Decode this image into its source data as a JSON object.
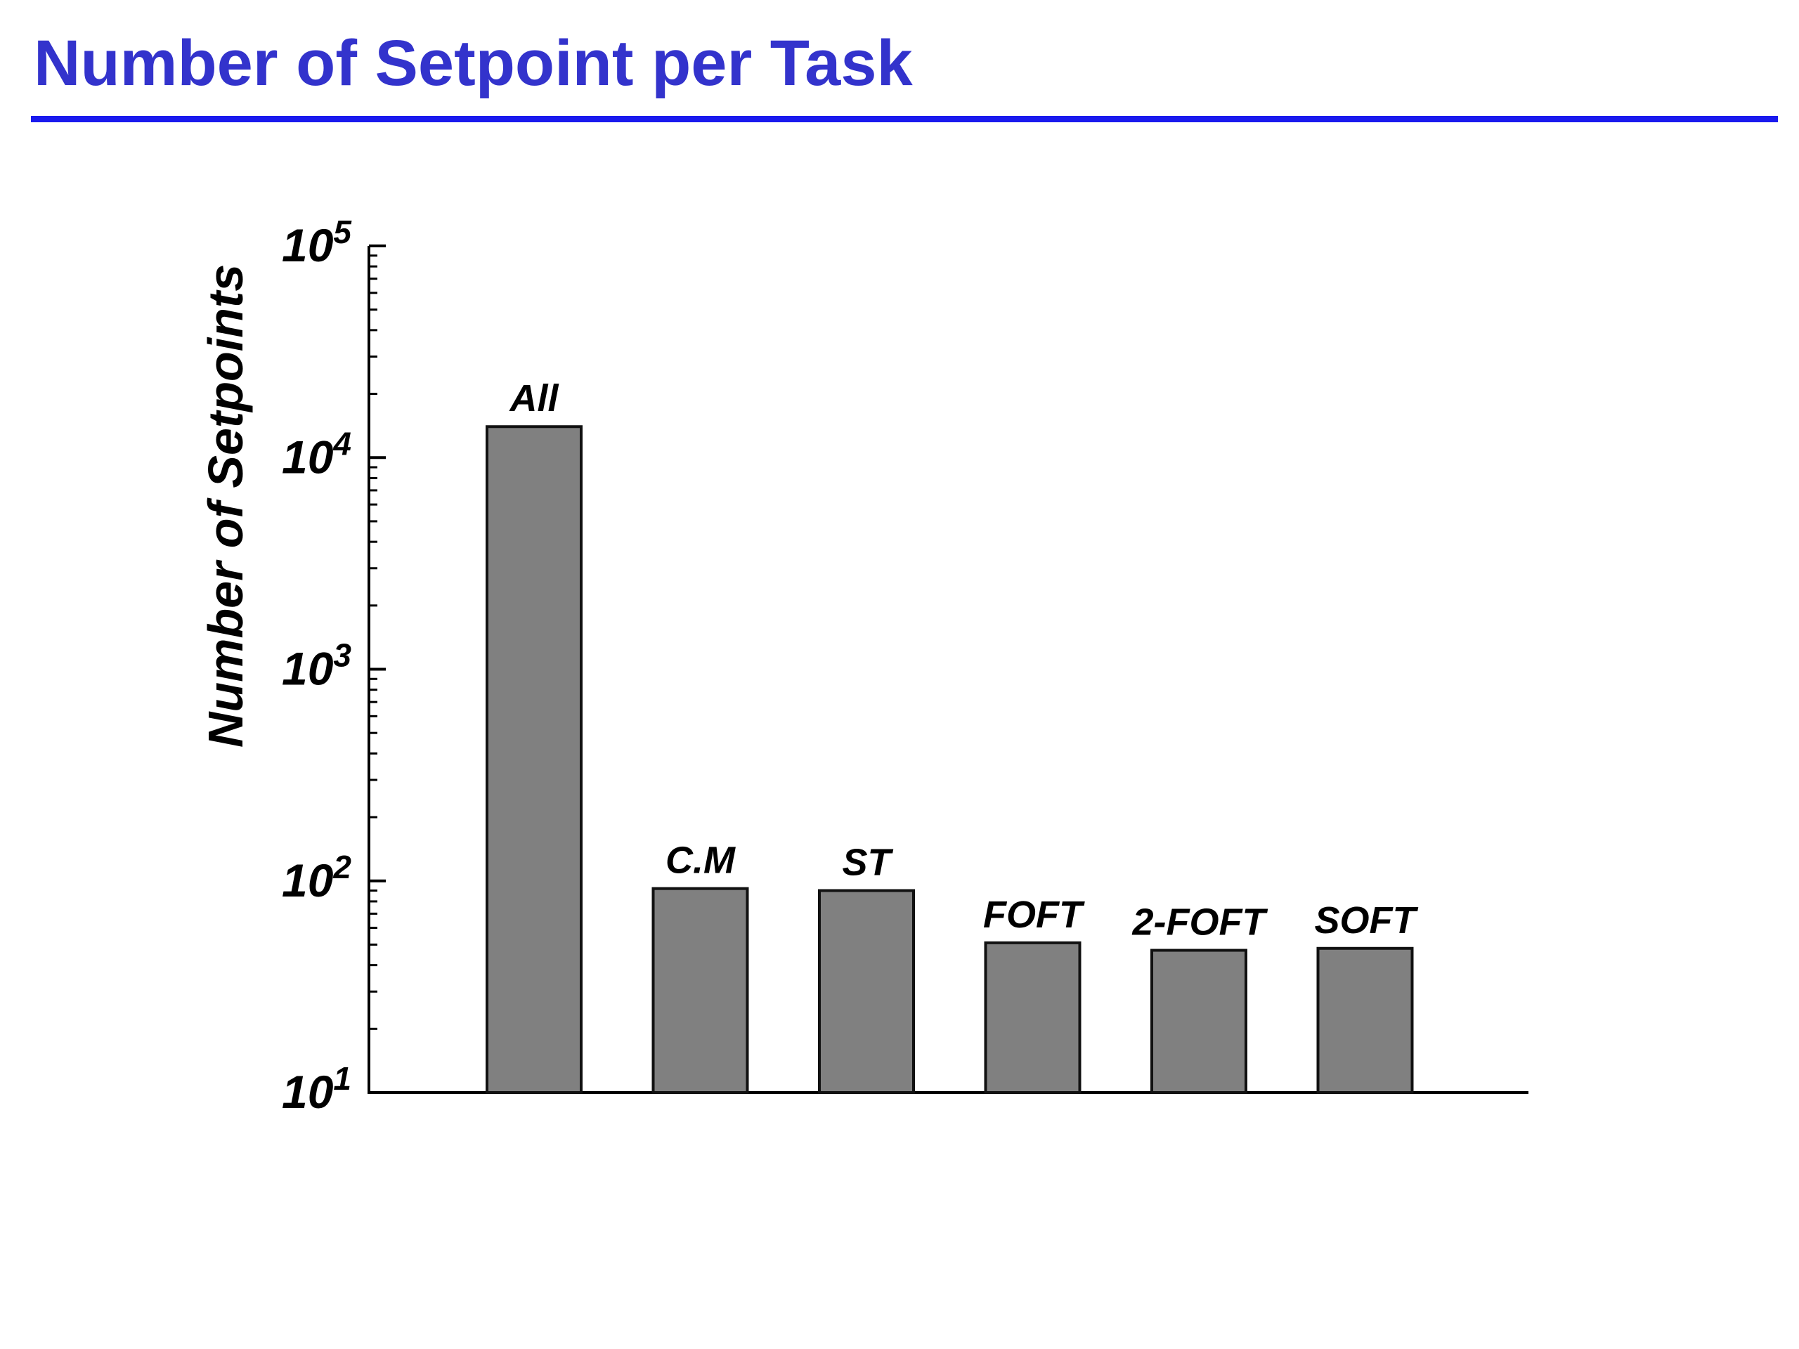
{
  "slide": {
    "title": "Number of Setpoint per Task"
  },
  "colors": {
    "title": "#3333cc",
    "rule": "#1a1aee",
    "bar_fill": "#808080",
    "bar_stroke": "#111111",
    "axis": "#000000"
  },
  "chart_data": {
    "type": "bar",
    "title": "",
    "xlabel": "",
    "ylabel": "Number of Setpoints",
    "yscale": "log",
    "ylim": [
      10,
      100000
    ],
    "y_ticks": [
      {
        "base": "10",
        "exp": "1",
        "value": 10
      },
      {
        "base": "10",
        "exp": "2",
        "value": 100
      },
      {
        "base": "10",
        "exp": "3",
        "value": 1000
      },
      {
        "base": "10",
        "exp": "4",
        "value": 10000
      },
      {
        "base": "10",
        "exp": "5",
        "value": 100000
      }
    ],
    "categories": [
      "All",
      "C.M",
      "ST",
      "FOFT",
      "2-FOFT",
      "SOFT"
    ],
    "values": [
      14000,
      92,
      90,
      51,
      47,
      48
    ],
    "grid": false,
    "legend": "none",
    "category_labels_position": "above bars"
  }
}
